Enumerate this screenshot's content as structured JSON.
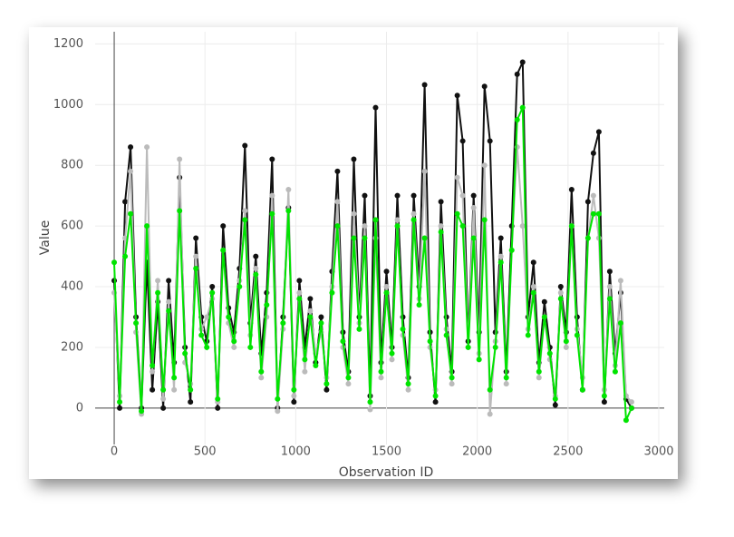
{
  "chart_data": {
    "type": "line",
    "x_label": "Observation ID",
    "y_label": "Value",
    "xlim": [
      -105,
      3030
    ],
    "ylim": [
      -120,
      1240
    ],
    "xticks": [
      0,
      500,
      1000,
      1500,
      2000,
      2500,
      3000
    ],
    "yticks": [
      0,
      200,
      400,
      600,
      800,
      1000,
      1200
    ],
    "grid": true,
    "markers": true,
    "x": [
      0,
      30,
      60,
      90,
      120,
      150,
      180,
      210,
      240,
      270,
      300,
      330,
      360,
      390,
      420,
      450,
      480,
      510,
      540,
      570,
      600,
      630,
      660,
      690,
      720,
      750,
      780,
      810,
      840,
      870,
      900,
      930,
      960,
      990,
      1020,
      1050,
      1080,
      1110,
      1140,
      1170,
      1200,
      1230,
      1260,
      1290,
      1320,
      1350,
      1380,
      1410,
      1440,
      1470,
      1500,
      1530,
      1560,
      1590,
      1620,
      1650,
      1680,
      1710,
      1740,
      1770,
      1800,
      1830,
      1860,
      1890,
      1920,
      1950,
      1980,
      2010,
      2040,
      2070,
      2100,
      2130,
      2160,
      2190,
      2220,
      2250,
      2280,
      2310,
      2340,
      2370,
      2400,
      2430,
      2460,
      2490,
      2520,
      2550,
      2580,
      2610,
      2640,
      2670,
      2700,
      2730,
      2760,
      2790,
      2820,
      2850
    ],
    "series": [
      {
        "color": "#111111",
        "values": [
          420,
          0,
          680,
          860,
          300,
          0,
          480,
          60,
          350,
          0,
          420,
          150,
          760,
          200,
          20,
          560,
          300,
          220,
          400,
          0,
          600,
          330,
          250,
          460,
          865,
          280,
          500,
          180,
          380,
          820,
          0,
          300,
          660,
          20,
          420,
          200,
          360,
          150,
          300,
          60,
          450,
          780,
          250,
          120,
          820,
          300,
          700,
          40,
          990,
          150,
          450,
          200,
          700,
          300,
          100,
          700,
          400,
          1065,
          250,
          20,
          680,
          300,
          120,
          1030,
          880,
          220,
          700,
          250,
          1060,
          880,
          250,
          560,
          120,
          600,
          1100,
          1140,
          300,
          480,
          150,
          350,
          200,
          10,
          400,
          250,
          720,
          300,
          60,
          680,
          840,
          910,
          20,
          450,
          180,
          380,
          30,
          0
        ]
      },
      {
        "color": "#bbbbbb",
        "values": [
          380,
          40,
          560,
          780,
          250,
          -20,
          860,
          120,
          420,
          30,
          350,
          60,
          820,
          150,
          80,
          500,
          260,
          300,
          360,
          20,
          520,
          280,
          200,
          420,
          650,
          240,
          460,
          100,
          300,
          700,
          -10,
          260,
          720,
          40,
          380,
          120,
          320,
          180,
          250,
          100,
          400,
          680,
          200,
          80,
          640,
          280,
          600,
          -5,
          560,
          100,
          400,
          160,
          620,
          240,
          60,
          640,
          360,
          780,
          200,
          60,
          600,
          260,
          80,
          760,
          700,
          200,
          660,
          180,
          800,
          -20,
          220,
          500,
          80,
          520,
          860,
          600,
          260,
          400,
          100,
          300,
          160,
          40,
          380,
          200,
          600,
          260,
          100,
          560,
          700,
          560,
          60,
          400,
          140,
          420,
          40,
          20
        ]
      },
      {
        "color": "#00e400",
        "values": [
          480,
          20,
          500,
          640,
          280,
          -10,
          600,
          140,
          380,
          60,
          320,
          100,
          650,
          180,
          60,
          460,
          240,
          200,
          380,
          30,
          520,
          300,
          220,
          400,
          620,
          200,
          440,
          120,
          340,
          640,
          30,
          280,
          650,
          60,
          360,
          160,
          300,
          140,
          280,
          80,
          380,
          600,
          220,
          100,
          560,
          260,
          560,
          20,
          620,
          120,
          380,
          180,
          600,
          260,
          80,
          620,
          340,
          560,
          220,
          40,
          580,
          240,
          100,
          640,
          600,
          200,
          560,
          160,
          620,
          60,
          200,
          480,
          100,
          520,
          950,
          990,
          240,
          380,
          120,
          300,
          180,
          30,
          360,
          220,
          600,
          240,
          60,
          560,
          640,
          640,
          40,
          360,
          120,
          280,
          -40,
          0
        ]
      }
    ]
  }
}
